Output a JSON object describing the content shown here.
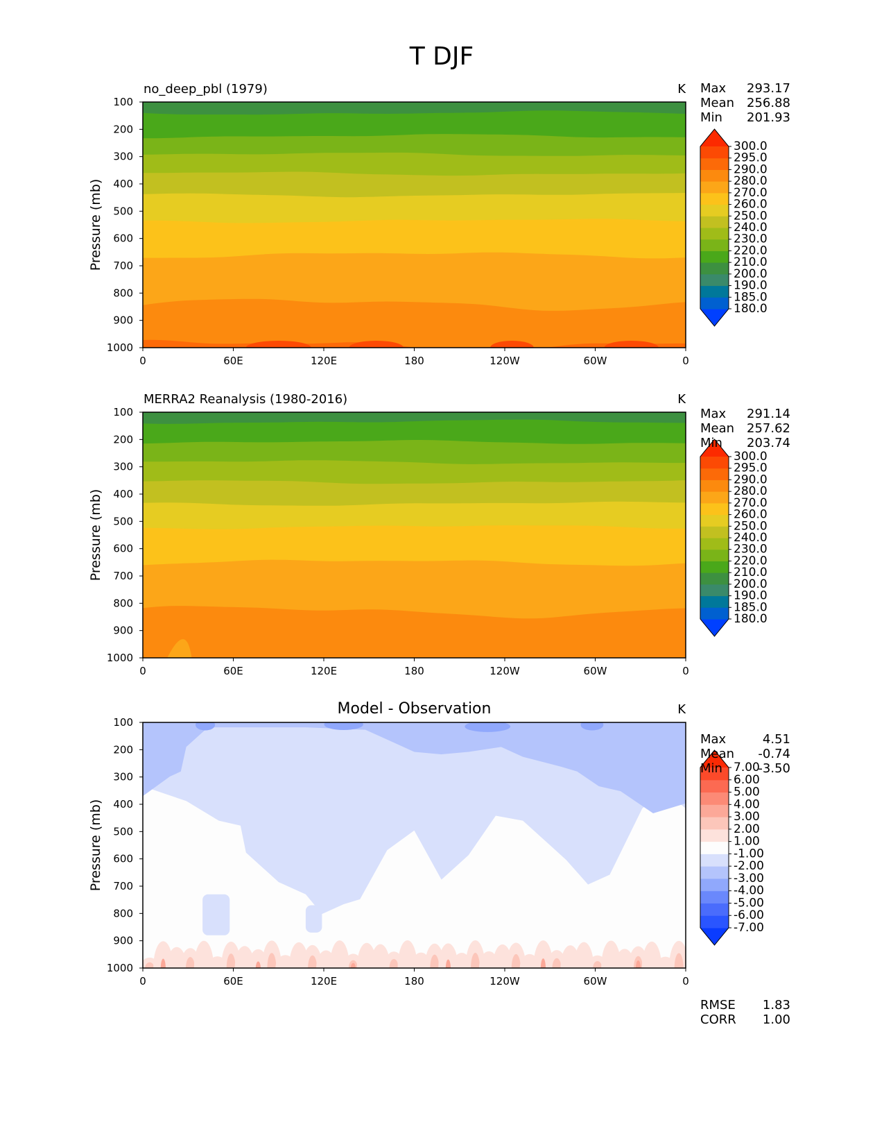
{
  "figure_title": "T DJF",
  "ylabel": "Pressure (mb)",
  "units": "K",
  "chart_data": [
    {
      "type": "contourf",
      "panel": "model",
      "title": "no_deep_pbl (1979)",
      "units": "K",
      "xlabel": "",
      "ylabel": "Pressure (mb)",
      "x_ticks": [
        "0",
        "60E",
        "120E",
        "180",
        "120W",
        "60W",
        "0"
      ],
      "y_ticks": [
        "100",
        "200",
        "300",
        "400",
        "500",
        "600",
        "700",
        "800",
        "900",
        "1000"
      ],
      "ylim": [
        1000,
        100
      ],
      "levels": [
        "180.0",
        "185.0",
        "190.0",
        "200.0",
        "210.0",
        "220.0",
        "230.0",
        "240.0",
        "250.0",
        "260.0",
        "270.0",
        "280.0",
        "290.0",
        "295.0",
        "300.0"
      ],
      "colors": [
        "#0040ff",
        "#0060d0",
        "#00789a",
        "#3a8a6a",
        "#3d9040",
        "#4aa81a",
        "#7ab418",
        "#a0bc18",
        "#c2c020",
        "#e6cc22",
        "#fcc21a",
        "#fca618",
        "#fc8a0e",
        "#fc6a08",
        "#fc4a04",
        "#fc2a00"
      ],
      "band_boundaries_mb": [
        140,
        225,
        292,
        362,
        440,
        535,
        660,
        840,
        990
      ],
      "band_level_index": [
        4,
        5,
        6,
        7,
        8,
        9,
        10,
        11,
        12,
        13
      ],
      "stats": {
        "max_label": "Max",
        "max": "293.17",
        "mean_label": "Mean",
        "mean": "256.88",
        "min_label": "Min",
        "min": "201.93"
      }
    },
    {
      "type": "contourf",
      "panel": "obs",
      "title": "MERRA2 Reanalysis (1980-2016)",
      "units": "K",
      "xlabel": "",
      "ylabel": "Pressure (mb)",
      "x_ticks": [
        "0",
        "60E",
        "120E",
        "180",
        "120W",
        "60W",
        "0"
      ],
      "y_ticks": [
        "100",
        "200",
        "300",
        "400",
        "500",
        "600",
        "700",
        "800",
        "900",
        "1000"
      ],
      "ylim": [
        1000,
        100
      ],
      "levels": [
        "180.0",
        "185.0",
        "190.0",
        "200.0",
        "210.0",
        "220.0",
        "230.0",
        "240.0",
        "250.0",
        "260.0",
        "270.0",
        "280.0",
        "290.0",
        "295.0",
        "300.0"
      ],
      "colors": [
        "#0040ff",
        "#0060d0",
        "#00789a",
        "#3a8a6a",
        "#3d9040",
        "#4aa81a",
        "#7ab418",
        "#a0bc18",
        "#c2c020",
        "#e6cc22",
        "#fcc21a",
        "#fca618",
        "#fc8a0e",
        "#fc6a08",
        "#fc4a04",
        "#fc2a00"
      ],
      "band_boundaries_mb": [
        135,
        210,
        283,
        355,
        435,
        520,
        650,
        830
      ],
      "band_level_index": [
        4,
        5,
        6,
        7,
        8,
        9,
        10,
        11,
        12
      ],
      "stats": {
        "max_label": "Max",
        "max": "291.14",
        "mean_label": "Mean",
        "mean": "257.62",
        "min_label": "Min",
        "min": "203.74"
      }
    },
    {
      "type": "contourf",
      "panel": "diff",
      "title": "Model - Observation",
      "units": "K",
      "xlabel": "",
      "ylabel": "Pressure (mb)",
      "x_ticks": [
        "0",
        "60E",
        "120E",
        "180",
        "120W",
        "60W",
        "0"
      ],
      "y_ticks": [
        "100",
        "200",
        "300",
        "400",
        "500",
        "600",
        "700",
        "800",
        "900",
        "1000"
      ],
      "ylim": [
        1000,
        100
      ],
      "levels": [
        "-7.00",
        "-6.00",
        "-5.00",
        "-4.00",
        "-3.00",
        "-2.00",
        "-1.00",
        "1.00",
        "2.00",
        "3.00",
        "4.00",
        "5.00",
        "6.00",
        "7.00"
      ],
      "colors": [
        "#0a3cff",
        "#2a55ff",
        "#4a6cfc",
        "#6a88fc",
        "#90a8fc",
        "#b4c4fc",
        "#d8e0fc",
        "#fdfdfd",
        "#fde2dc",
        "#fcc6ba",
        "#fca898",
        "#fc8a76",
        "#fc6a52",
        "#fc4a2a",
        "#fc2a04"
      ],
      "stats": {
        "max_label": "Max",
        "max": "4.51",
        "mean_label": "Mean",
        "mean": "-0.74",
        "min_label": "Min",
        "min": "-3.50"
      },
      "metrics": {
        "rmse_label": "RMSE",
        "rmse": "1.83",
        "corr_label": "CORR",
        "corr": "1.00"
      }
    }
  ]
}
